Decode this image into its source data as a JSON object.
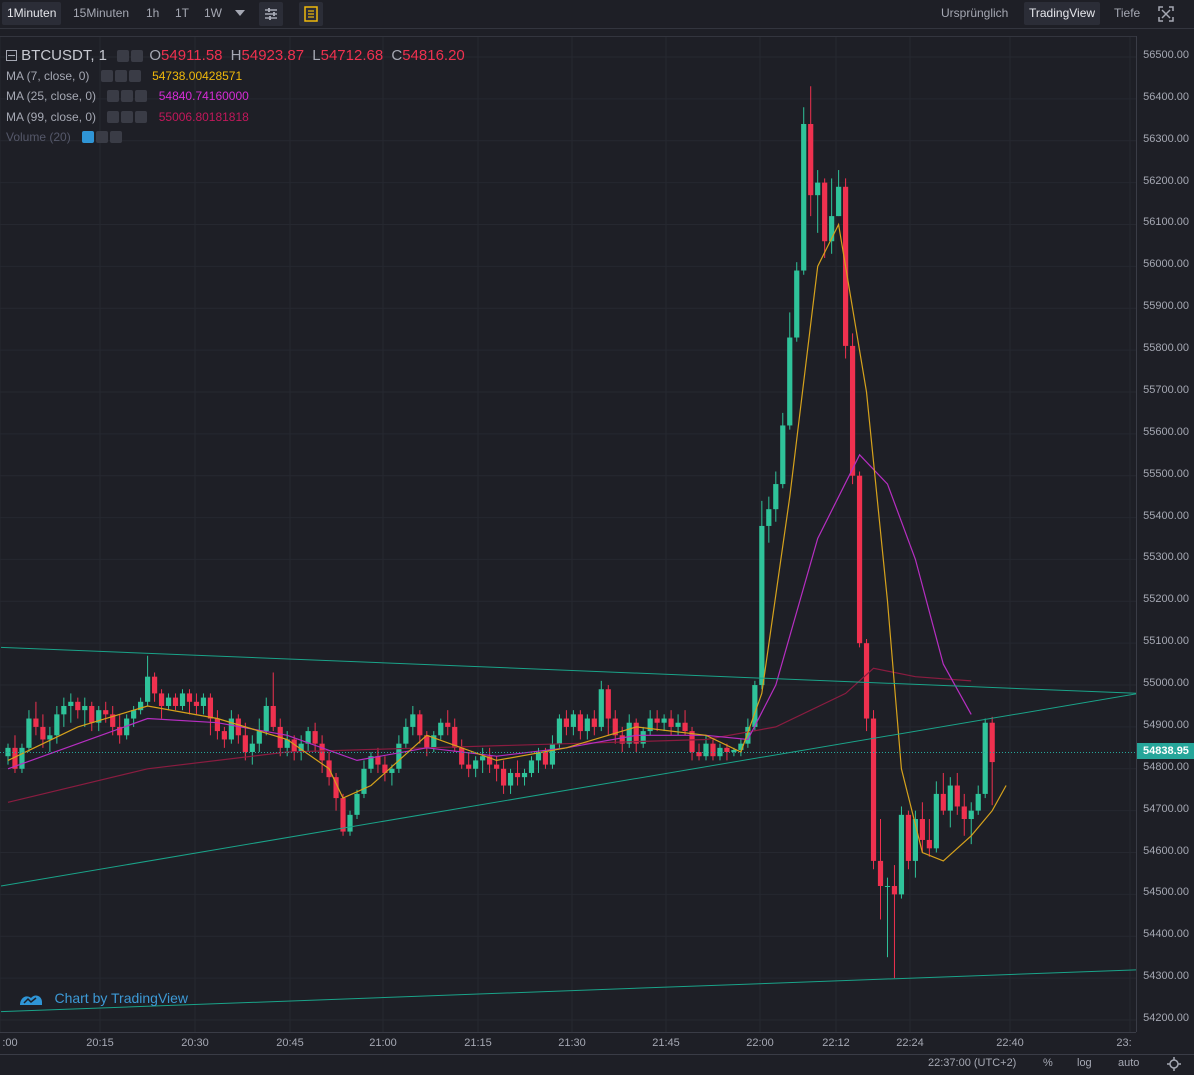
{
  "toolbar": {
    "intervals": [
      "1Minuten",
      "15Minuten",
      "1h",
      "1T",
      "1W"
    ],
    "active_interval": "1Minuten",
    "dropdown_icon": "chevron-down-icon",
    "settings_icon": "sliders-icon",
    "indicators_icon": "chart-list-icon",
    "views": [
      "Ursprünglich",
      "TradingView",
      "Tiefe"
    ],
    "active_view": "TradingView",
    "fullscreen_icon": "fullscreen-icon"
  },
  "legend": {
    "symbol": "BTCUSDT, 1",
    "o_label": "O",
    "o_value": "54911.58",
    "h_label": "H",
    "h_value": "54923.87",
    "l_label": "L",
    "l_value": "54712.68",
    "c_label": "C",
    "c_value": "54816.20",
    "ma7_label": "MA (7, close, 0)",
    "ma7_value": "54738.00428571",
    "ma25_label": "MA (25, close, 0)",
    "ma25_value": "54840.74160000",
    "ma99_label": "MA (99, close, 0)",
    "ma99_value": "55006.80181818",
    "volume_label": "Volume (20)"
  },
  "watermark": "Chart by TradingView",
  "status": {
    "time": "22:37:00 (UTC+2)",
    "percent": "%",
    "log": "log",
    "auto": "auto"
  },
  "colors": {
    "up": "#26a69a",
    "up_body": "#2fc39a",
    "down": "#ef314f",
    "ma7": "#d6a21c",
    "ma25": "#b62ec1",
    "ma99": "#8a1c40",
    "trendline": "#1aa389",
    "current_price": "#26a69a"
  },
  "chart_data": {
    "type": "candlestick",
    "symbol": "BTCUSDT",
    "interval": "1",
    "ylim": [
      54200,
      56500
    ],
    "y_ticks": [
      54200,
      54300,
      54400,
      54500,
      54600,
      54700,
      54800,
      54900,
      55000,
      55100,
      55200,
      55300,
      55400,
      55500,
      55600,
      55700,
      55800,
      55900,
      56000,
      56100,
      56200,
      56300,
      56400,
      56500
    ],
    "x_ticks": [
      ":00",
      "20:15",
      "20:30",
      "20:45",
      "21:00",
      "21:15",
      "21:30",
      "21:45",
      "22:00",
      "22:12",
      "22:24",
      "22:40",
      "23:"
    ],
    "current_price": "54838.95",
    "last_candle": {
      "open": 54911.58,
      "high": 54923.87,
      "low": 54712.68,
      "close": 54816.2
    },
    "candles_ohlc": [
      [
        54830,
        54860,
        54810,
        54850
      ],
      [
        54850,
        54880,
        54790,
        54800
      ],
      [
        54800,
        54860,
        54790,
        54850
      ],
      [
        54850,
        54940,
        54840,
        54920
      ],
      [
        54920,
        54960,
        54880,
        54900
      ],
      [
        54900,
        54930,
        54850,
        54870
      ],
      [
        54870,
        54900,
        54840,
        54880
      ],
      [
        54880,
        54950,
        54860,
        54930
      ],
      [
        54930,
        54970,
        54900,
        54950
      ],
      [
        54950,
        54980,
        54910,
        54960
      ],
      [
        54960,
        54970,
        54920,
        54940
      ],
      [
        54940,
        54970,
        54900,
        54950
      ],
      [
        54950,
        54960,
        54890,
        54910
      ],
      [
        54910,
        54950,
        54890,
        54940
      ],
      [
        54940,
        54960,
        54910,
        54930
      ],
      [
        54930,
        54950,
        54880,
        54900
      ],
      [
        54900,
        54930,
        54860,
        54880
      ],
      [
        54880,
        54930,
        54870,
        54920
      ],
      [
        54920,
        54950,
        54900,
        54940
      ],
      [
        54940,
        54970,
        54930,
        54960
      ],
      [
        54960,
        55070,
        54950,
        55020
      ],
      [
        55020,
        55030,
        54960,
        54980
      ],
      [
        54980,
        54990,
        54920,
        54950
      ],
      [
        54950,
        54980,
        54940,
        54970
      ],
      [
        54970,
        54980,
        54940,
        54950
      ],
      [
        54950,
        54990,
        54940,
        54980
      ],
      [
        54980,
        54990,
        54930,
        54960
      ],
      [
        54960,
        54980,
        54930,
        54950
      ],
      [
        54950,
        54980,
        54930,
        54970
      ],
      [
        54970,
        54980,
        54880,
        54920
      ],
      [
        54920,
        54940,
        54870,
        54890
      ],
      [
        54890,
        54900,
        54850,
        54870
      ],
      [
        54870,
        54940,
        54860,
        54920
      ],
      [
        54920,
        54930,
        54860,
        54880
      ],
      [
        54880,
        54910,
        54820,
        54840
      ],
      [
        54840,
        54880,
        54810,
        54860
      ],
      [
        54860,
        54920,
        54840,
        54890
      ],
      [
        54890,
        54970,
        54880,
        54950
      ],
      [
        54950,
        55030,
        54890,
        54900
      ],
      [
        54900,
        54920,
        54830,
        54850
      ],
      [
        54850,
        54890,
        54830,
        54870
      ],
      [
        54870,
        54880,
        54820,
        54840
      ],
      [
        54840,
        54880,
        54820,
        54860
      ],
      [
        54860,
        54900,
        54840,
        54890
      ],
      [
        54890,
        54910,
        54840,
        54860
      ],
      [
        54860,
        54880,
        54790,
        54820
      ],
      [
        54820,
        54840,
        54760,
        54780
      ],
      [
        54780,
        54790,
        54700,
        54730
      ],
      [
        54730,
        54740,
        54640,
        54650
      ],
      [
        54650,
        54700,
        54640,
        54690
      ],
      [
        54690,
        54750,
        54680,
        54740
      ],
      [
        54740,
        54820,
        54730,
        54800
      ],
      [
        54800,
        54840,
        54790,
        54830
      ],
      [
        54830,
        54850,
        54790,
        54810
      ],
      [
        54810,
        54830,
        54770,
        54790
      ],
      [
        54790,
        54810,
        54760,
        54800
      ],
      [
        54800,
        54880,
        54790,
        54860
      ],
      [
        54860,
        54920,
        54850,
        54900
      ],
      [
        54900,
        54950,
        54880,
        54930
      ],
      [
        54930,
        54940,
        54860,
        54880
      ],
      [
        54880,
        54890,
        54830,
        54850
      ],
      [
        54850,
        54890,
        54840,
        54880
      ],
      [
        54880,
        54920,
        54870,
        54910
      ],
      [
        54910,
        54940,
        54880,
        54900
      ],
      [
        54900,
        54920,
        54840,
        54850
      ],
      [
        54850,
        54870,
        54800,
        54810
      ],
      [
        54810,
        54840,
        54780,
        54800
      ],
      [
        54800,
        54830,
        54780,
        54820
      ],
      [
        54820,
        54850,
        54790,
        54830
      ],
      [
        54830,
        54850,
        54790,
        54810
      ],
      [
        54810,
        54830,
        54770,
        54800
      ],
      [
        54800,
        54820,
        54740,
        54760
      ],
      [
        54760,
        54800,
        54740,
        54790
      ],
      [
        54790,
        54820,
        54760,
        54780
      ],
      [
        54780,
        54800,
        54760,
        54790
      ],
      [
        54790,
        54830,
        54780,
        54820
      ],
      [
        54820,
        54850,
        54790,
        54840
      ],
      [
        54840,
        54850,
        54800,
        54810
      ],
      [
        54810,
        54880,
        54800,
        54860
      ],
      [
        54860,
        54930,
        54850,
        54920
      ],
      [
        54920,
        54940,
        54880,
        54900
      ],
      [
        54900,
        54940,
        54880,
        54930
      ],
      [
        54930,
        54940,
        54870,
        54890
      ],
      [
        54890,
        54930,
        54870,
        54920
      ],
      [
        54920,
        54940,
        54880,
        54900
      ],
      [
        54900,
        55010,
        54890,
        54990
      ],
      [
        54990,
        55000,
        54880,
        54920
      ],
      [
        54920,
        54940,
        54860,
        54880
      ],
      [
        54880,
        54900,
        54840,
        54860
      ],
      [
        54860,
        54930,
        54850,
        54910
      ],
      [
        54910,
        54920,
        54840,
        54860
      ],
      [
        54860,
        54900,
        54850,
        54890
      ],
      [
        54890,
        54940,
        54880,
        54920
      ],
      [
        54920,
        54940,
        54890,
        54910
      ],
      [
        54910,
        54930,
        54890,
        54920
      ],
      [
        54920,
        54940,
        54880,
        54900
      ],
      [
        54900,
        54930,
        54880,
        54910
      ],
      [
        54910,
        54940,
        54880,
        54890
      ],
      [
        54890,
        54900,
        54820,
        54840
      ],
      [
        54840,
        54860,
        54820,
        54830
      ],
      [
        54830,
        54880,
        54820,
        54860
      ],
      [
        54860,
        54870,
        54820,
        54830
      ],
      [
        54830,
        54860,
        54820,
        54850
      ],
      [
        54850,
        54860,
        54820,
        54840
      ],
      [
        54840,
        54850,
        54830,
        54845
      ],
      [
        54845,
        54870,
        54830,
        54860
      ],
      [
        54860,
        54920,
        54850,
        54900
      ],
      [
        54900,
        55010,
        54890,
        55000
      ],
      [
        55000,
        55440,
        54990,
        55380
      ],
      [
        55380,
        55450,
        55340,
        55420
      ],
      [
        55420,
        55510,
        55390,
        55480
      ],
      [
        55480,
        55650,
        55470,
        55620
      ],
      [
        55620,
        55890,
        55610,
        55830
      ],
      [
        55830,
        56010,
        55820,
        55990
      ],
      [
        55990,
        56380,
        55980,
        56340
      ],
      [
        56340,
        56430,
        56120,
        56170
      ],
      [
        56170,
        56230,
        56080,
        56200
      ],
      [
        56200,
        56210,
        56020,
        56060
      ],
      [
        56060,
        56210,
        56030,
        56120
      ],
      [
        56120,
        56230,
        56120,
        56190
      ],
      [
        56190,
        56210,
        55780,
        55810
      ],
      [
        55810,
        55840,
        55480,
        55500
      ],
      [
        55500,
        55510,
        55090,
        55100
      ],
      [
        55100,
        55110,
        54890,
        54920
      ],
      [
        54920,
        54940,
        54560,
        54580
      ],
      [
        54580,
        54680,
        54440,
        54520
      ],
      [
        54520,
        54540,
        54350,
        54520
      ],
      [
        54520,
        54570,
        54300,
        54500
      ],
      [
        54500,
        54710,
        54490,
        54690
      ],
      [
        54690,
        54700,
        54560,
        54580
      ],
      [
        54580,
        54700,
        54540,
        54680
      ],
      [
        54680,
        54720,
        54600,
        54630
      ],
      [
        54630,
        54680,
        54590,
        54610
      ],
      [
        54610,
        54770,
        54600,
        54740
      ],
      [
        54740,
        54790,
        54690,
        54700
      ],
      [
        54700,
        54780,
        54660,
        54760
      ],
      [
        54760,
        54790,
        54690,
        54710
      ],
      [
        54710,
        54740,
        54640,
        54680
      ],
      [
        54680,
        54720,
        54620,
        54700
      ],
      [
        54700,
        54760,
        54690,
        54740
      ],
      [
        54740,
        54920,
        54730,
        54910
      ],
      [
        54910,
        54924,
        54713,
        54816
      ]
    ],
    "ma7_line": [
      [
        0,
        54820
      ],
      [
        10,
        54900
      ],
      [
        20,
        54950
      ],
      [
        30,
        54920
      ],
      [
        40,
        54870
      ],
      [
        46,
        54800
      ],
      [
        48,
        54730
      ],
      [
        52,
        54760
      ],
      [
        60,
        54880
      ],
      [
        70,
        54820
      ],
      [
        80,
        54850
      ],
      [
        90,
        54900
      ],
      [
        100,
        54880
      ],
      [
        105,
        54840
      ],
      [
        108,
        54980
      ],
      [
        112,
        55450
      ],
      [
        116,
        56000
      ],
      [
        119,
        56100
      ],
      [
        123,
        55700
      ],
      [
        126,
        55200
      ],
      [
        128,
        54800
      ],
      [
        131,
        54600
      ],
      [
        134,
        54580
      ],
      [
        138,
        54640
      ],
      [
        141,
        54700
      ],
      [
        143,
        54760
      ]
    ],
    "ma25_line": [
      [
        0,
        54800
      ],
      [
        10,
        54860
      ],
      [
        20,
        54920
      ],
      [
        30,
        54910
      ],
      [
        40,
        54880
      ],
      [
        50,
        54820
      ],
      [
        60,
        54850
      ],
      [
        70,
        54830
      ],
      [
        80,
        54850
      ],
      [
        90,
        54880
      ],
      [
        100,
        54880
      ],
      [
        106,
        54870
      ],
      [
        110,
        55000
      ],
      [
        116,
        55350
      ],
      [
        122,
        55550
      ],
      [
        126,
        55480
      ],
      [
        130,
        55300
      ],
      [
        134,
        55050
      ],
      [
        138,
        54930
      ]
    ],
    "ma99_line": [
      [
        0,
        54720
      ],
      [
        20,
        54800
      ],
      [
        40,
        54840
      ],
      [
        60,
        54850
      ],
      [
        80,
        54860
      ],
      [
        100,
        54870
      ],
      [
        110,
        54900
      ],
      [
        120,
        54980
      ],
      [
        124,
        55040
      ],
      [
        130,
        55020
      ],
      [
        138,
        55010
      ]
    ],
    "trendlines": [
      {
        "from": [
          -1,
          55090
        ],
        "to": [
          162,
          54980
        ]
      },
      {
        "from": [
          -1,
          54520
        ],
        "to": [
          162,
          54980
        ]
      },
      {
        "from": [
          -1,
          54220
        ],
        "to": [
          162,
          54320
        ]
      }
    ]
  }
}
